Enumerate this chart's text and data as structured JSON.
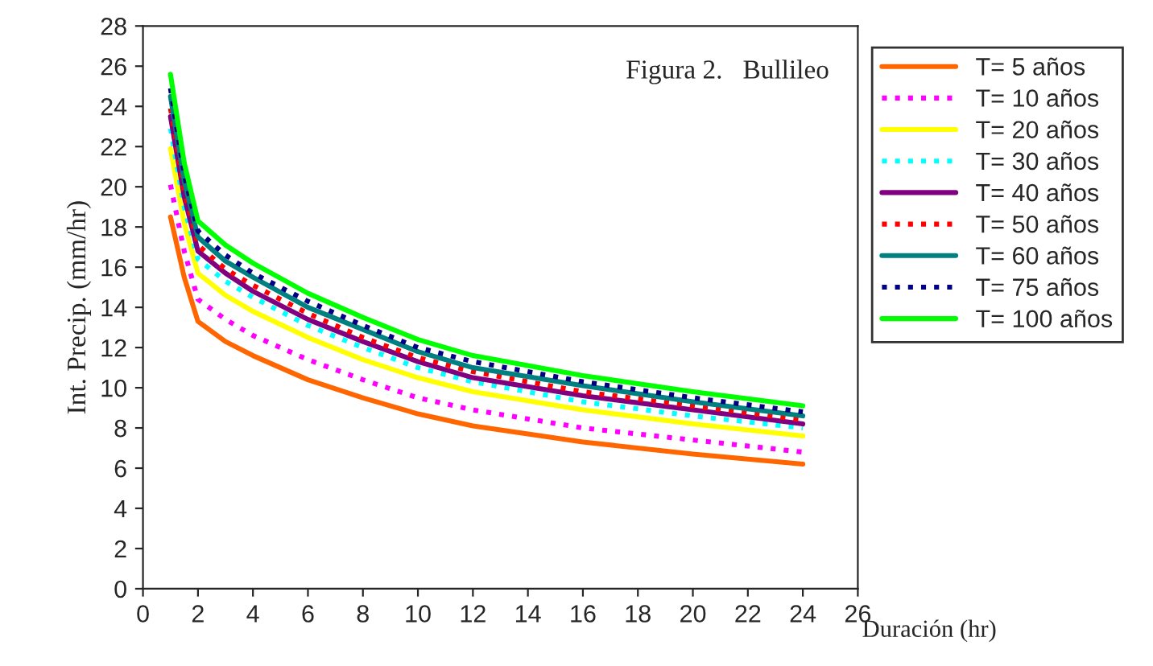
{
  "chart_data": {
    "type": "line",
    "annotations": [
      "Figura 2.   Bullileo"
    ],
    "xlabel": "Duración (hr)",
    "ylabel": "Int. Precip. (mm/hr)",
    "x": [
      1,
      1.5,
      2,
      3,
      4,
      6,
      8,
      10,
      12,
      16,
      20,
      24
    ],
    "xlim": [
      0,
      26
    ],
    "xticks": [
      0,
      2,
      4,
      6,
      8,
      10,
      12,
      14,
      16,
      18,
      20,
      22,
      24,
      26
    ],
    "ylim": [
      0,
      28
    ],
    "yticks": [
      0,
      2,
      4,
      6,
      8,
      10,
      12,
      14,
      16,
      18,
      20,
      22,
      24,
      26,
      28
    ],
    "grid": false,
    "legend": "right",
    "marker": "none",
    "series": [
      {
        "name": "T= 5 años",
        "color": "#ff6600",
        "line_style": "solid",
        "values": [
          18.5,
          15.5,
          13.3,
          12.3,
          11.6,
          10.4,
          9.5,
          8.7,
          8.1,
          7.3,
          6.7,
          6.2
        ]
      },
      {
        "name": "T= 10 años",
        "color": "#ff00ff",
        "line_style": "dotted",
        "values": [
          20.1,
          16.8,
          14.4,
          13.4,
          12.6,
          11.4,
          10.4,
          9.5,
          8.9,
          8.0,
          7.4,
          6.8
        ]
      },
      {
        "name": "T= 20 años",
        "color": "#ffff00",
        "line_style": "solid",
        "values": [
          21.9,
          18.2,
          15.7,
          14.6,
          13.8,
          12.5,
          11.4,
          10.5,
          9.8,
          8.9,
          8.2,
          7.6
        ]
      },
      {
        "name": "T= 30 años",
        "color": "#00ffff",
        "line_style": "dotted",
        "values": [
          22.9,
          19.0,
          16.4,
          15.3,
          14.5,
          13.1,
          12.0,
          11.0,
          10.3,
          9.3,
          8.6,
          8.0
        ]
      },
      {
        "name": "T= 40 años",
        "color": "#800080",
        "line_style": "solid",
        "values": [
          23.5,
          19.5,
          16.8,
          15.7,
          14.8,
          13.4,
          12.3,
          11.3,
          10.5,
          9.6,
          8.9,
          8.2
        ]
      },
      {
        "name": "T= 50 años",
        "color": "#ff0000",
        "line_style": "dotted",
        "values": [
          23.9,
          19.8,
          17.1,
          15.9,
          15.1,
          13.7,
          12.5,
          11.5,
          10.8,
          9.8,
          9.1,
          8.4
        ]
      },
      {
        "name": "T= 60 años",
        "color": "#008080",
        "line_style": "solid",
        "values": [
          24.5,
          20.3,
          17.5,
          16.3,
          15.5,
          14.0,
          12.9,
          11.8,
          11.0,
          10.1,
          9.3,
          8.6
        ]
      },
      {
        "name": "T= 75 años",
        "color": "#000080",
        "line_style": "dotted",
        "values": [
          24.9,
          20.6,
          17.8,
          16.6,
          15.7,
          14.3,
          13.1,
          12.0,
          11.3,
          10.3,
          9.5,
          8.8
        ]
      },
      {
        "name": "T= 100 años",
        "color": "#00ff00",
        "line_style": "solid",
        "values": [
          25.6,
          21.2,
          18.3,
          17.1,
          16.2,
          14.7,
          13.5,
          12.4,
          11.6,
          10.6,
          9.8,
          9.1
        ]
      }
    ]
  }
}
